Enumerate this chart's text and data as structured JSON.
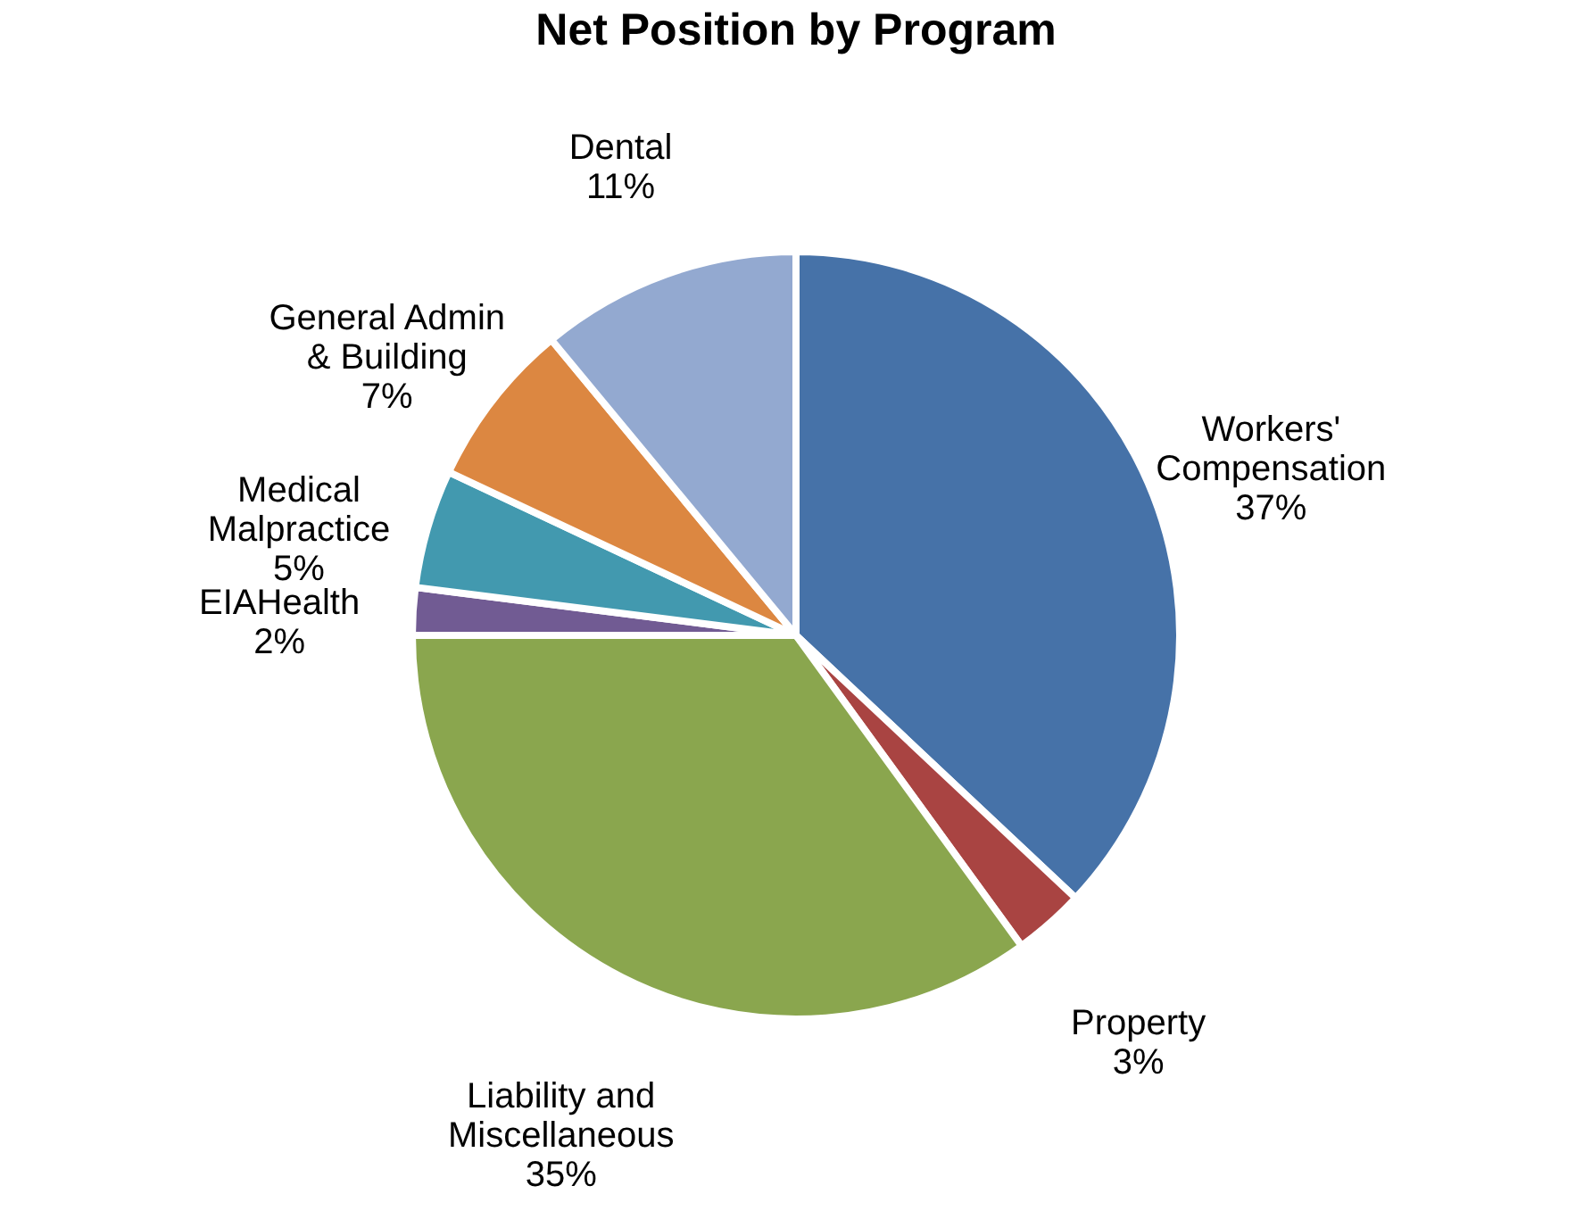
{
  "chart_data": {
    "type": "pie",
    "title": "Net  Position by Program",
    "categories": [
      "Workers'\nCompensation",
      "Property",
      "Liability and\nMiscellaneous",
      "EIAHealth",
      "Medical\nMalpractice",
      "General Admin\n& Building",
      "Dental"
    ],
    "values": [
      37,
      3,
      35,
      2,
      5,
      7,
      11
    ],
    "value_labels": [
      "37%",
      "3%",
      "35%",
      "2%",
      "5%",
      "7%",
      "11%"
    ],
    "colors": [
      "#4672a8",
      "#a94442",
      "#8aa64e",
      "#715b93",
      "#4299af",
      "#dc8741",
      "#93a9d0"
    ],
    "legend": false
  }
}
